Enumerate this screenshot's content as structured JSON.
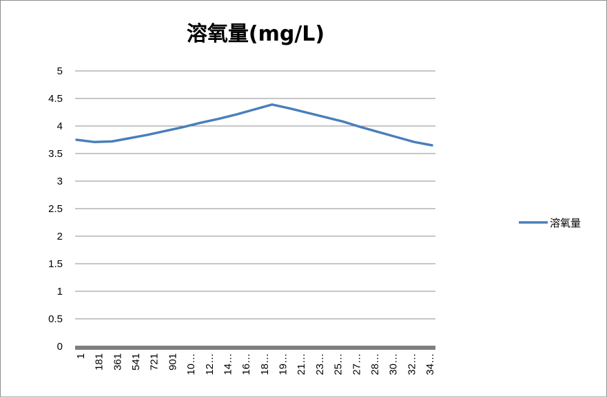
{
  "chart_data": {
    "type": "line",
    "title": "溶氧量(mg/L)",
    "xlabel": "",
    "ylabel": "",
    "ylim": [
      0,
      5
    ],
    "y_ticks": [
      "0",
      "0.5",
      "1",
      "1.5",
      "2",
      "2.5",
      "3",
      "3.5",
      "4",
      "4.5",
      "5"
    ],
    "x_tick_labels": [
      "1",
      "181",
      "361",
      "541",
      "721",
      "901",
      "10…",
      "12…",
      "14…",
      "16…",
      "18…",
      "19…",
      "21…",
      "23…",
      "25…",
      "27…",
      "28…",
      "30…",
      "32…",
      "34…"
    ],
    "grid": "horizontal",
    "legend": "right",
    "series": [
      {
        "name": "溶氧量",
        "color": "#4a7ebb",
        "values": [
          3.75,
          3.71,
          3.72,
          3.78,
          3.84,
          3.91,
          3.98,
          4.06,
          4.13,
          4.21,
          4.3,
          4.39,
          4.32,
          4.24,
          4.16,
          4.08,
          3.98,
          3.89,
          3.8,
          3.71,
          3.65
        ]
      }
    ]
  }
}
